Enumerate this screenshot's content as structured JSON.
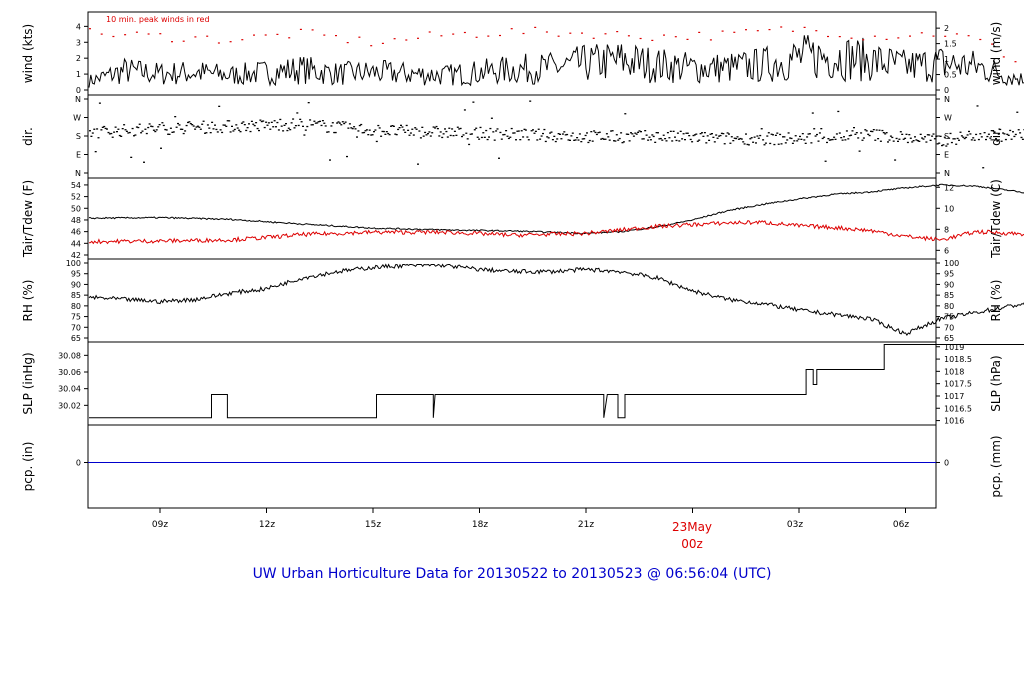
{
  "title": "UW Urban Horticulture Data for 20130522  to  20130523 @ 06:56:04  (UTC)",
  "wind_annotation": "10 min. peak winds in red",
  "colors": {
    "primary": "#000000",
    "secondary": "#dd0000",
    "pcp": "#0000cc",
    "title": "#0000cc",
    "date_label": "#dd0000"
  },
  "chart_data": [
    {
      "type": "line",
      "name": "wind",
      "ylabel_left": "wind (kts)",
      "ylabel_right": "wind (m/s)",
      "ylim": [
        0,
        4.4
      ],
      "left_ticks": [
        0,
        1,
        2,
        3,
        4
      ],
      "right_ticks": [
        {
          "value": 0,
          "label": "0"
        },
        {
          "value": 0.5,
          "label": "0.5"
        },
        {
          "value": 1,
          "label": "1"
        },
        {
          "value": 1.5,
          "label": "1.5"
        },
        {
          "value": 2,
          "label": "2"
        }
      ],
      "series": [
        {
          "values_hours_kts": [
            [
              0,
              0.6
            ],
            [
              1,
              1.3
            ],
            [
              2,
              1.1
            ],
            [
              3,
              1.2
            ],
            [
              4,
              1.0
            ],
            [
              5,
              1.2
            ],
            [
              6,
              1.4
            ],
            [
              7,
              1.1
            ],
            [
              8,
              1.2
            ],
            [
              9,
              1.1
            ],
            [
              10,
              1.0
            ],
            [
              11,
              1.2
            ],
            [
              12,
              1.4
            ],
            [
              13,
              1.5
            ],
            [
              14,
              1.8
            ],
            [
              15,
              2.0
            ],
            [
              16,
              1.7
            ],
            [
              17,
              1.5
            ],
            [
              18,
              1.5
            ],
            [
              19,
              1.7
            ],
            [
              20,
              2.2
            ],
            [
              21,
              2.3
            ],
            [
              22,
              2.0
            ],
            [
              23,
              1.6
            ],
            [
              24,
              1.8
            ],
            [
              25,
              1.6
            ],
            [
              26,
              0.9
            ],
            [
              27,
              0.3
            ],
            [
              28,
              0.2
            ],
            [
              29,
              0.3
            ],
            [
              30,
              0.2
            ],
            [
              31,
              0.1
            ],
            [
              32,
              0.0
            ]
          ]
        },
        {
          "values_hours_kts": [
            [
              0,
              3.6
            ],
            [
              2,
              3.4
            ],
            [
              4,
              3.2
            ],
            [
              6,
              3.6
            ],
            [
              8,
              3.0
            ],
            [
              10,
              3.5
            ],
            [
              12,
              3.7
            ],
            [
              14,
              3.6
            ],
            [
              16,
              3.4
            ],
            [
              18,
              3.5
            ],
            [
              20,
              3.9
            ],
            [
              22,
              3.4
            ],
            [
              24,
              3.6
            ],
            [
              25,
              3.2
            ],
            [
              26,
              2.0
            ],
            [
              27,
              1.3
            ],
            [
              28,
              1.0
            ],
            [
              29,
              0.8
            ],
            [
              30,
              0.6
            ],
            [
              31,
              0.3
            ],
            [
              32,
              0.0
            ]
          ]
        }
      ]
    },
    {
      "type": "scatter",
      "name": "dir",
      "ylabel_left": "dir.",
      "ylabel_right": "dir.",
      "y_categories": [
        "N",
        "E",
        "S",
        "W",
        "N"
      ],
      "series": [
        {
          "values_hours_deg": [
            [
              0,
              200
            ],
            [
              2,
              220
            ],
            [
              4,
              230
            ],
            [
              6,
              240
            ],
            [
              8,
              210
            ],
            [
              10,
              200
            ],
            [
              12,
              190
            ],
            [
              14,
              180
            ],
            [
              16,
              180
            ],
            [
              18,
              170
            ],
            [
              20,
              170
            ],
            [
              22,
              190
            ],
            [
              24,
              160
            ],
            [
              25,
              190
            ],
            [
              26,
              185
            ],
            [
              27,
              200
            ],
            [
              28,
              240
            ],
            [
              28.5,
              100
            ],
            [
              29,
              20
            ],
            [
              30,
              5
            ]
          ]
        }
      ]
    },
    {
      "type": "line",
      "name": "temperature",
      "ylabel_left": "Tair/Tdew (F)",
      "ylabel_right": "Tair/Tdew (C)",
      "ylim": [
        42,
        54.5
      ],
      "left_ticks": [
        42,
        44,
        46,
        48,
        50,
        52,
        54
      ],
      "right_ticks": [
        {
          "value": 6,
          "label": "6"
        },
        {
          "value": 8,
          "label": "8"
        },
        {
          "value": 10,
          "label": "10"
        },
        {
          "value": 12,
          "label": "12"
        }
      ],
      "series": [
        {
          "name": "Tair",
          "values_hours_F": [
            [
              0,
              48.3
            ],
            [
              2,
              48.4
            ],
            [
              4,
              48.1
            ],
            [
              6,
              47.3
            ],
            [
              8,
              46.6
            ],
            [
              10,
              46.3
            ],
            [
              12,
              46.1
            ],
            [
              14,
              45.7
            ],
            [
              15,
              46.0
            ],
            [
              16,
              46.8
            ],
            [
              17,
              48.0
            ],
            [
              18,
              49.6
            ],
            [
              19,
              50.7
            ],
            [
              20,
              51.6
            ],
            [
              21,
              52.4
            ],
            [
              22,
              52.8
            ],
            [
              23,
              53.5
            ],
            [
              24,
              54.0
            ],
            [
              25,
              53.8
            ],
            [
              26,
              53.0
            ],
            [
              27,
              52.0
            ],
            [
              28,
              50.5
            ],
            [
              29,
              49.3
            ],
            [
              30,
              48.0
            ],
            [
              31,
              47.0
            ],
            [
              32,
              46.2
            ]
          ]
        },
        {
          "name": "Tdew",
          "values_hours_F": [
            [
              0,
              44.3
            ],
            [
              2,
              44.4
            ],
            [
              4,
              44.6
            ],
            [
              5,
              45.0
            ],
            [
              6,
              45.5
            ],
            [
              8,
              45.9
            ],
            [
              10,
              45.9
            ],
            [
              12,
              45.4
            ],
            [
              14,
              45.7
            ],
            [
              16,
              46.9
            ],
            [
              18,
              47.5
            ],
            [
              19,
              47.6
            ],
            [
              20,
              47.0
            ],
            [
              21,
              46.7
            ],
            [
              22,
              46.2
            ],
            [
              23,
              45.2
            ],
            [
              24,
              44.6
            ],
            [
              25,
              46.0
            ],
            [
              26,
              45.7
            ],
            [
              28,
              45.2
            ],
            [
              29,
              45.4
            ],
            [
              30,
              45.6
            ],
            [
              31,
              45.9
            ],
            [
              32,
              45.3
            ]
          ]
        }
      ]
    },
    {
      "type": "line",
      "name": "rh",
      "ylabel_left": "RH (%)",
      "ylabel_right": "RH (%)",
      "ylim": [
        65,
        100
      ],
      "left_ticks": [
        65,
        70,
        75,
        80,
        85,
        90,
        95,
        100
      ],
      "right_ticks": [
        {
          "value": 65,
          "label": "65"
        },
        {
          "value": 70,
          "label": "70"
        },
        {
          "value": 75,
          "label": "75"
        },
        {
          "value": 80,
          "label": "80"
        },
        {
          "value": 85,
          "label": "85"
        },
        {
          "value": 90,
          "label": "90"
        },
        {
          "value": 95,
          "label": "95"
        },
        {
          "value": 100,
          "label": "100"
        }
      ],
      "series": [
        {
          "values_hours_pct": [
            [
              0,
              84
            ],
            [
              2,
              82
            ],
            [
              3,
              83
            ],
            [
              4,
              86
            ],
            [
              5,
              88
            ],
            [
              6,
              93
            ],
            [
              7,
              96
            ],
            [
              8,
              98
            ],
            [
              9,
              99
            ],
            [
              10,
              99
            ],
            [
              11,
              97
            ],
            [
              12,
              96
            ],
            [
              13,
              96
            ],
            [
              14,
              97
            ],
            [
              15,
              96
            ],
            [
              16,
              93
            ],
            [
              17,
              87
            ],
            [
              18,
              83
            ],
            [
              19,
              81
            ],
            [
              20,
              78
            ],
            [
              21,
              76
            ],
            [
              22,
              74
            ],
            [
              23,
              67
            ],
            [
              24,
              74
            ],
            [
              25,
              77
            ],
            [
              26,
              80
            ],
            [
              27,
              83
            ],
            [
              28,
              86
            ],
            [
              29,
              89
            ],
            [
              30,
              96
            ],
            [
              31,
              96
            ],
            [
              32,
              97
            ]
          ]
        }
      ]
    },
    {
      "type": "line",
      "name": "slp",
      "ylabel_left": "SLP (inHg)",
      "ylabel_right": "SLP (hPa)",
      "ylim": [
        30.0,
        30.09
      ],
      "left_ticks": [
        30.02,
        30.04,
        30.06,
        30.08
      ],
      "right_ticks": [
        {
          "value": 30.0017,
          "label": "1016"
        },
        {
          "value": 30.0165,
          "label": "1016.5"
        },
        {
          "value": 30.0312,
          "label": "1017"
        },
        {
          "value": 30.046,
          "label": "1017.5"
        },
        {
          "value": 30.0608,
          "label": "1018"
        },
        {
          "value": 30.0755,
          "label": "1018.5"
        },
        {
          "value": 30.0903,
          "label": "1019"
        }
      ],
      "series": [
        {
          "values_hours_inHg": [
            [
              0,
              30.005
            ],
            [
              3.45,
              30.005
            ],
            [
              3.45,
              30.033
            ],
            [
              3.9,
              30.033
            ],
            [
              3.9,
              30.005
            ],
            [
              8.1,
              30.005
            ],
            [
              8.1,
              30.033
            ],
            [
              9.7,
              30.033
            ],
            [
              9.7,
              30.005
            ],
            [
              9.75,
              30.033
            ],
            [
              14.5,
              30.033
            ],
            [
              14.5,
              30.005
            ],
            [
              14.6,
              30.033
            ],
            [
              14.9,
              30.033
            ],
            [
              14.9,
              30.005
            ],
            [
              15.1,
              30.005
            ],
            [
              15.1,
              30.033
            ],
            [
              20.2,
              30.033
            ],
            [
              20.2,
              30.063
            ],
            [
              20.4,
              30.063
            ],
            [
              20.4,
              30.045
            ],
            [
              20.5,
              30.045
            ],
            [
              20.5,
              30.063
            ],
            [
              22.4,
              30.063
            ],
            [
              22.4,
              30.093
            ],
            [
              32,
              30.093
            ]
          ]
        }
      ]
    },
    {
      "type": "line",
      "name": "pcp",
      "ylabel_left": "pcp. (in)",
      "ylabel_right": "pcp. (mm)",
      "left_ticks": [
        0
      ],
      "right_ticks": [
        {
          "value": 0,
          "label": "0"
        }
      ],
      "series": [
        {
          "values_hours_in": [
            [
              0,
              0
            ],
            [
              32,
              0
            ]
          ]
        }
      ]
    }
  ],
  "x_axis": {
    "ticks": [
      "09z",
      "12z",
      "15z",
      "18z",
      "21z",
      "00z",
      "03z",
      "06z"
    ],
    "date_label": "23May",
    "date_time": "00z"
  }
}
